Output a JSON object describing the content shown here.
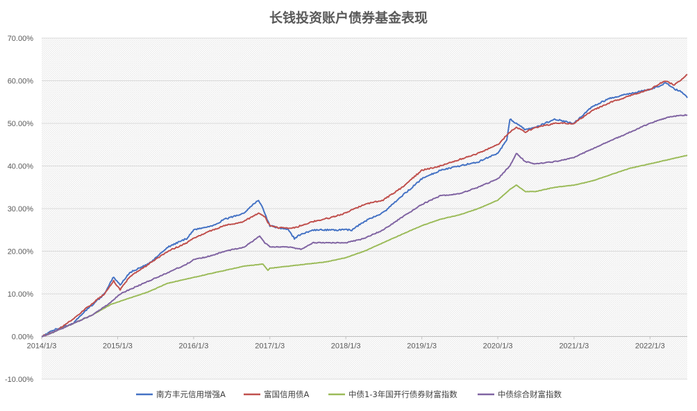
{
  "chart_data": {
    "type": "line",
    "title": "长钱投资账户债券基金表现",
    "xlabel": "",
    "ylabel": "",
    "x_tick_labels": [
      "2014/1/3",
      "2015/1/3",
      "2016/1/3",
      "2017/1/3",
      "2018/1/3",
      "2019/1/3",
      "2020/1/3",
      "2021/1/3",
      "2022/1/3"
    ],
    "y_tick_labels": [
      "-10.00%",
      "0.00%",
      "10.00%",
      "20.00%",
      "30.00%",
      "40.00%",
      "50.00%",
      "60.00%",
      "70.00%"
    ],
    "ylim": [
      -10,
      70
    ],
    "x_range": [
      "2014/1/3",
      "2022/7/1"
    ],
    "grid": "horizontal",
    "legend_position": "bottom",
    "series": [
      {
        "name": "南方丰元信用增强A",
        "color": "#4472C4",
        "x": [
          "2014/1/3",
          "2014/3/1",
          "2014/5/1",
          "2014/6/1",
          "2014/8/1",
          "2014/11/1",
          "2014/12/15",
          "2015/1/15",
          "2015/3/1",
          "2015/6/1",
          "2015/9/1",
          "2015/12/1",
          "2016/1/3",
          "2016/4/1",
          "2016/6/1",
          "2016/9/1",
          "2016/10/15",
          "2016/11/10",
          "2016/12/1",
          "2016/12/25",
          "2017/1/3",
          "2017/2/15",
          "2017/4/1",
          "2017/5/1",
          "2017/6/1",
          "2017/8/1",
          "2017/11/1",
          "2018/1/3",
          "2018/2/1",
          "2018/4/1",
          "2018/7/1",
          "2018/10/1",
          "2019/1/3",
          "2019/4/1",
          "2019/7/1",
          "2019/10/1",
          "2020/1/3",
          "2020/2/15",
          "2020/3/1",
          "2020/4/1",
          "2020/5/15",
          "2020/7/1",
          "2020/10/1",
          "2021/1/3",
          "2021/4/1",
          "2021/7/1",
          "2021/10/1",
          "2022/1/3",
          "2022/3/1",
          "2022/3/20",
          "2022/5/1",
          "2022/6/1",
          "2022/7/1"
        ],
        "values": [
          0,
          1.5,
          2.5,
          3,
          6,
          10,
          14,
          12,
          15,
          17,
          21,
          23,
          25,
          26,
          27.5,
          29,
          31,
          32,
          30,
          27,
          26,
          25.5,
          25,
          23,
          24,
          25,
          25,
          25,
          25,
          27,
          29,
          33,
          37,
          39,
          40,
          41,
          43,
          46,
          51,
          50,
          48.5,
          49,
          51,
          50,
          54,
          56,
          57,
          58,
          59,
          59.5,
          58,
          57.5,
          56
        ]
      },
      {
        "name": "富国信用债A",
        "color": "#C0504D",
        "x": [
          "2014/1/3",
          "2014/3/1",
          "2014/6/1",
          "2014/8/1",
          "2014/11/1",
          "2014/12/15",
          "2015/1/15",
          "2015/3/1",
          "2015/6/1",
          "2015/9/1",
          "2015/12/1",
          "2016/1/3",
          "2016/4/1",
          "2016/6/1",
          "2016/9/1",
          "2016/11/10",
          "2016/12/10",
          "2017/1/3",
          "2017/2/15",
          "2017/5/1",
          "2017/8/1",
          "2017/11/1",
          "2018/1/3",
          "2018/4/1",
          "2018/7/1",
          "2018/10/1",
          "2019/1/3",
          "2019/4/1",
          "2019/7/1",
          "2019/10/1",
          "2020/1/3",
          "2020/3/1",
          "2020/4/1",
          "2020/5/15",
          "2020/7/1",
          "2020/10/1",
          "2021/1/3",
          "2021/4/1",
          "2021/7/1",
          "2021/10/1",
          "2022/1/3",
          "2022/3/15",
          "2022/5/1",
          "2022/7/1"
        ],
        "values": [
          0,
          1,
          4,
          6.5,
          10,
          13,
          11,
          14,
          17,
          20,
          22,
          23,
          25,
          26,
          27,
          29,
          28,
          26,
          25.5,
          25.5,
          27,
          28,
          29,
          31,
          32,
          35,
          39,
          40,
          41.5,
          43,
          45,
          48,
          49,
          48,
          49,
          50,
          50,
          53,
          55,
          56.5,
          58,
          60,
          59,
          61.5
        ]
      },
      {
        "name": "中债1-3年国开行债券财富指数",
        "color": "#9BBB59",
        "x": [
          "2014/1/3",
          "2014/3/1",
          "2014/6/1",
          "2014/9/1",
          "2014/12/1",
          "2015/3/1",
          "2015/6/1",
          "2015/9/1",
          "2015/12/1",
          "2016/3/1",
          "2016/6/1",
          "2016/9/1",
          "2016/12/1",
          "2016/12/25",
          "2017/1/3",
          "2017/4/1",
          "2017/7/1",
          "2017/10/1",
          "2018/1/3",
          "2018/4/1",
          "2018/7/1",
          "2018/10/1",
          "2019/1/3",
          "2019/4/1",
          "2019/7/1",
          "2019/10/1",
          "2020/1/3",
          "2020/3/1",
          "2020/4/1",
          "2020/5/15",
          "2020/7/1",
          "2020/10/1",
          "2021/1/3",
          "2021/4/1",
          "2021/7/1",
          "2021/10/1",
          "2022/1/3",
          "2022/4/1",
          "2022/7/1"
        ],
        "values": [
          0,
          1,
          3,
          5,
          7.5,
          9,
          10.5,
          12.5,
          13.5,
          14.5,
          15.5,
          16.5,
          17,
          15.5,
          16,
          16.5,
          17,
          17.5,
          18.5,
          20,
          22,
          24,
          26,
          27.5,
          28.5,
          30,
          32,
          34.5,
          35.5,
          34,
          34,
          35,
          35.5,
          36.5,
          38,
          39.5,
          40.5,
          41.5,
          42.5
        ]
      },
      {
        "name": "中债综合财富指数",
        "color": "#8064A2",
        "x": [
          "2014/1/3",
          "2014/3/1",
          "2014/6/1",
          "2014/9/1",
          "2014/12/1",
          "2015/1/15",
          "2015/3/1",
          "2015/6/1",
          "2015/9/1",
          "2015/12/1",
          "2016/1/3",
          "2016/4/1",
          "2016/6/1",
          "2016/9/1",
          "2016/11/15",
          "2016/12/10",
          "2017/1/3",
          "2017/4/1",
          "2017/6/1",
          "2017/8/1",
          "2017/11/1",
          "2018/1/3",
          "2018/4/1",
          "2018/7/1",
          "2018/10/1",
          "2019/1/3",
          "2019/4/1",
          "2019/7/1",
          "2019/10/1",
          "2020/1/3",
          "2020/3/1",
          "2020/4/1",
          "2020/5/15",
          "2020/7/1",
          "2020/10/1",
          "2021/1/3",
          "2021/4/1",
          "2021/7/1",
          "2021/10/1",
          "2022/1/3",
          "2022/4/1",
          "2022/7/1"
        ],
        "values": [
          0,
          1,
          3,
          5,
          8,
          10,
          11,
          13,
          15,
          17,
          18,
          19,
          20,
          21,
          23.5,
          22,
          21,
          21,
          20.5,
          22,
          22,
          22,
          23,
          25,
          28,
          31,
          33,
          33.5,
          35,
          37,
          40,
          43,
          41,
          40.5,
          41,
          42,
          44,
          46,
          48,
          50,
          51.5,
          52
        ]
      }
    ]
  }
}
